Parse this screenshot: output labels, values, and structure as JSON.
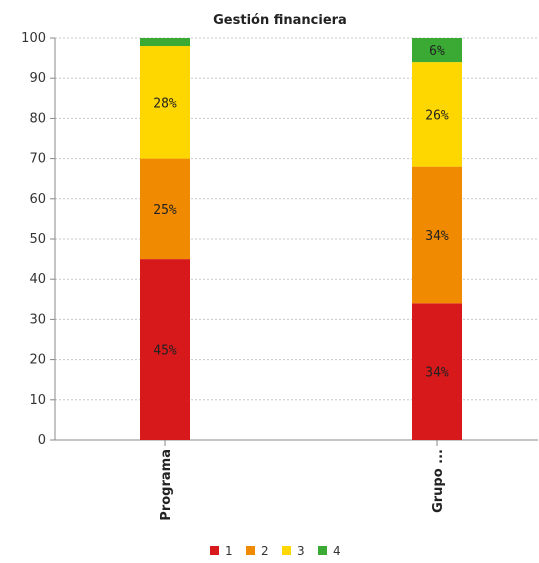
{
  "chart_data": {
    "type": "bar",
    "stacked": true,
    "title": "Gestión financiera",
    "xlabel": "",
    "ylabel": "",
    "ylim": [
      0,
      100
    ],
    "yticks": [
      0,
      10,
      20,
      30,
      40,
      50,
      60,
      70,
      80,
      90,
      100
    ],
    "grid": true,
    "legend_position": "bottom",
    "categories": [
      "Programa",
      "Grupo ..."
    ],
    "series": [
      {
        "name": "1",
        "color": "#d7191c",
        "values": [
          45,
          34
        ],
        "labels": [
          "45%",
          "34%"
        ]
      },
      {
        "name": "2",
        "color": "#f08a00",
        "values": [
          25,
          34
        ],
        "labels": [
          "25%",
          "34%"
        ]
      },
      {
        "name": "3",
        "color": "#ffd700",
        "values": [
          28,
          26
        ],
        "labels": [
          "28%",
          "26%"
        ]
      },
      {
        "name": "4",
        "color": "#3aaa35",
        "values": [
          2,
          6
        ],
        "labels": [
          "",
          "6%"
        ]
      }
    ]
  }
}
